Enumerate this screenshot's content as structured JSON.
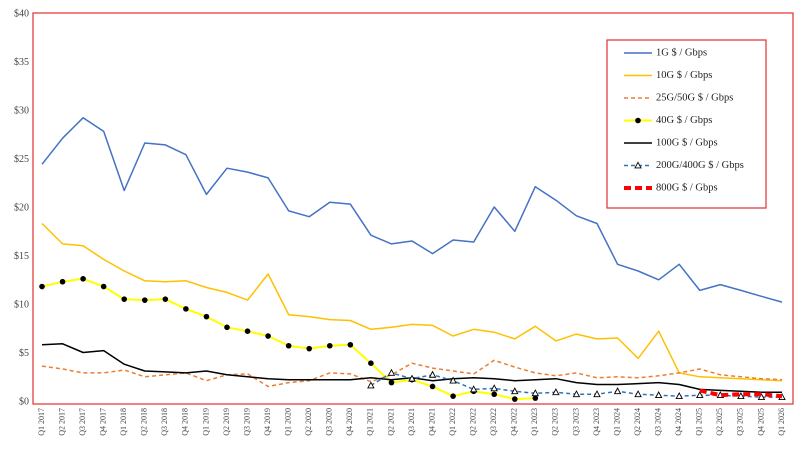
{
  "chart_data": {
    "type": "line",
    "categories": [
      "Q1 2017",
      "Q2 2017",
      "Q3 2017",
      "Q4 2017",
      "Q1 2018",
      "Q2 2018",
      "Q3 2018",
      "Q4 2018",
      "Q1 2019",
      "Q2 2019",
      "Q3 2019",
      "Q4 2019",
      "Q1 2020",
      "Q2 2020",
      "Q3 2020",
      "Q4 2020",
      "Q1 2021",
      "Q2 2021",
      "Q3 2021",
      "Q4 2021",
      "Q1 2022",
      "Q2 2022",
      "Q3 2022",
      "Q4 2022",
      "Q1 2023",
      "Q2 2023",
      "Q3 2023",
      "Q4 2023",
      "Q1 2024",
      "Q2 2024",
      "Q3 2024",
      "Q4 2024",
      "Q1 2025",
      "Q2 2025",
      "Q3 2025",
      "Q4 2025",
      "Q1 2026"
    ],
    "ylim": [
      0,
      40
    ],
    "yticks": [
      {
        "value": 0,
        "label": "$0"
      },
      {
        "value": 5,
        "label": "$5"
      },
      {
        "value": 10,
        "label": "$10"
      },
      {
        "value": 15,
        "label": "$15"
      },
      {
        "value": 20,
        "label": "$20"
      },
      {
        "value": 25,
        "label": "$25"
      },
      {
        "value": 30,
        "label": "$30"
      },
      {
        "value": 35,
        "label": "$35"
      },
      {
        "value": 40,
        "label": "$40"
      }
    ],
    "grid": false,
    "legend": "upper right",
    "series": [
      {
        "name": "1G $ / Gbps",
        "color": "#4472c4",
        "dash": "solid",
        "values": [
          24.5,
          27.2,
          29.3,
          27.9,
          21.8,
          26.7,
          26.5,
          25.5,
          21.4,
          24.1,
          23.7,
          23.1,
          19.7,
          19.1,
          20.6,
          20.4,
          17.2,
          16.3,
          16.6,
          15.3,
          16.7,
          16.5,
          20.1,
          17.6,
          22.2,
          20.8,
          19.2,
          18.4,
          14.2,
          13.5,
          12.6,
          14.2,
          11.5,
          12.1,
          11.5,
          10.9,
          10.3
        ]
      },
      {
        "name": "10G $ / Gbps",
        "color": "#ffc000",
        "dash": "solid",
        "values": [
          18.4,
          16.3,
          16.1,
          14.7,
          13.5,
          12.5,
          12.4,
          12.5,
          11.8,
          11.3,
          10.5,
          13.2,
          9.0,
          8.8,
          8.5,
          8.4,
          7.5,
          7.7,
          8.0,
          7.9,
          6.8,
          7.5,
          7.2,
          6.5,
          7.8,
          6.3,
          7.0,
          6.5,
          6.6,
          4.5,
          7.3,
          3.0,
          2.6,
          2.5,
          2.4,
          2.3,
          2.2
        ]
      },
      {
        "name": "25G/50G $ / Gbps",
        "color": "#ed7d31",
        "dash": "dashed",
        "values": [
          3.7,
          3.4,
          3.0,
          3.0,
          3.3,
          2.6,
          2.8,
          3.0,
          2.2,
          2.8,
          2.9,
          1.6,
          2.0,
          2.2,
          3.0,
          2.9,
          2.1,
          2.8,
          4.0,
          3.5,
          3.2,
          2.9,
          4.3,
          3.6,
          3.0,
          2.7,
          3.0,
          2.5,
          2.6,
          2.5,
          2.7,
          3.0,
          3.4,
          2.8,
          2.6,
          2.4,
          2.3
        ]
      },
      {
        "name": "40G $ / Gbps",
        "color": "#ffff00",
        "dash": "solid",
        "marker": "circle",
        "marker_color": "#000000",
        "values": [
          11.9,
          12.4,
          12.7,
          11.9,
          10.6,
          10.5,
          10.6,
          9.6,
          8.8,
          7.7,
          7.3,
          6.8,
          5.8,
          5.5,
          5.8,
          5.9,
          4.0,
          2.0,
          2.3,
          1.6,
          0.6,
          1.1,
          0.8,
          0.3,
          0.4,
          null,
          null,
          null,
          null,
          null,
          null,
          null,
          null,
          null,
          null,
          null,
          null
        ]
      },
      {
        "name": "100G $ / Gbps",
        "color": "#000000",
        "dash": "solid",
        "values": [
          5.9,
          6.0,
          5.1,
          5.3,
          3.9,
          3.2,
          3.1,
          3.0,
          3.2,
          2.8,
          2.6,
          2.4,
          2.3,
          2.3,
          2.3,
          2.3,
          2.5,
          2.3,
          2.5,
          2.2,
          2.4,
          2.5,
          2.4,
          2.2,
          2.3,
          2.4,
          2.0,
          1.8,
          1.8,
          1.9,
          2.0,
          1.8,
          1.3,
          1.2,
          1.1,
          1.0,
          1.0
        ]
      },
      {
        "name": "200G/400G $ / Gbps",
        "color": "#2e75b6",
        "dash": "dashed",
        "marker": "triangle",
        "marker_color": "#000000",
        "values": [
          null,
          null,
          null,
          null,
          null,
          null,
          null,
          null,
          null,
          null,
          null,
          null,
          null,
          null,
          null,
          null,
          1.7,
          3.0,
          2.4,
          2.8,
          2.2,
          1.3,
          1.4,
          1.1,
          0.9,
          1.0,
          0.8,
          0.8,
          1.1,
          0.8,
          0.7,
          0.6,
          0.7,
          0.7,
          0.6,
          0.5,
          0.5
        ]
      },
      {
        "name": "800G $ / Gbps",
        "color": "#ff0000",
        "dash": "bold-dashed",
        "values": [
          null,
          null,
          null,
          null,
          null,
          null,
          null,
          null,
          null,
          null,
          null,
          null,
          null,
          null,
          null,
          null,
          null,
          null,
          null,
          null,
          null,
          null,
          null,
          null,
          null,
          null,
          null,
          null,
          null,
          null,
          null,
          null,
          1.2,
          0.7,
          0.8,
          0.8,
          0.6
        ]
      }
    ]
  }
}
